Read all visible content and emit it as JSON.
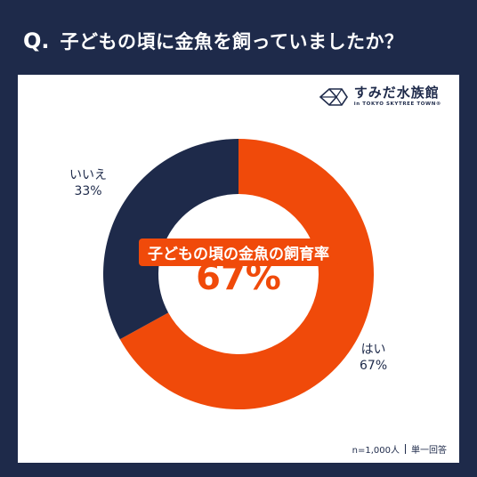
{
  "header": {
    "q_mark": "Q.",
    "question": "子どもの頃に金魚を飼っていましたか？"
  },
  "logo": {
    "name": "すみだ水族館",
    "sub": "in TOKYO SKYTREE TOWN®"
  },
  "chart_data": {
    "type": "pie",
    "style": "donut",
    "center_title": "子どもの頃の金魚の飼育率",
    "center_value": "67%",
    "slices": [
      {
        "label": "はい",
        "value": 67,
        "value_label": "67%",
        "color": "#f04a0a"
      },
      {
        "label": "いいえ",
        "value": 33,
        "value_label": "33%",
        "color": "#1e2a4a"
      }
    ]
  },
  "footnote": {
    "sample": "n=1,000人",
    "answer_type": "単一回答"
  }
}
